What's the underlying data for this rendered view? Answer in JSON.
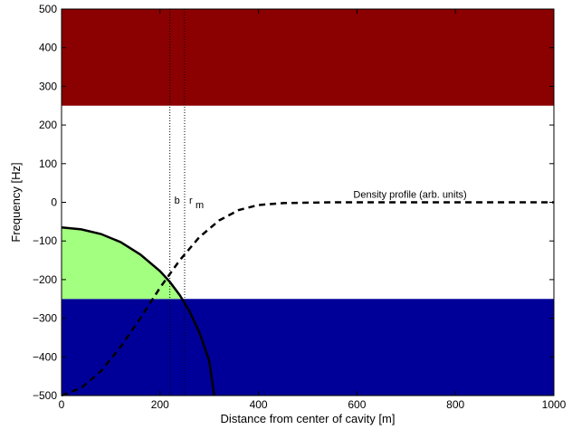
{
  "chart_data": {
    "type": "line",
    "xlabel": "Distance from center of cavity  [m]",
    "ylabel": "Frequency  [Hz]",
    "xlim": [
      0,
      1000
    ],
    "ylim": [
      -500,
      500
    ],
    "x_ticks": [
      0,
      200,
      400,
      600,
      800,
      1000
    ],
    "y_ticks": [
      -500,
      -400,
      -300,
      -200,
      -100,
      0,
      100,
      200,
      300,
      400,
      500
    ],
    "grid": false,
    "legend": "none",
    "bands": [
      {
        "x": [
          0,
          1000
        ],
        "y": [
          250,
          500
        ],
        "color": "#8b0000"
      },
      {
        "x": [
          0,
          1000
        ],
        "y": [
          -500,
          -250
        ],
        "color": "#000099"
      },
      {
        "x": [
          0,
          210
        ],
        "y": [
          -250,
          -65
        ],
        "color": "#a3ff80",
        "note": "area under solid curve"
      }
    ],
    "series": [
      {
        "style": "solid",
        "color": "#000000",
        "x": [
          0,
          40,
          80,
          120,
          160,
          200,
          220,
          240,
          260,
          280,
          300,
          310
        ],
        "y": [
          -65,
          -70,
          -82,
          -103,
          -135,
          -178,
          -206,
          -240,
          -282,
          -337,
          -410,
          -500
        ]
      },
      {
        "style": "dashed",
        "color": "#000000",
        "x": [
          0,
          40,
          80,
          120,
          160,
          200,
          240,
          280,
          320,
          360,
          400,
          450,
          500,
          550,
          600,
          700,
          800,
          900,
          1000
        ],
        "y": [
          -500,
          -480,
          -437,
          -374,
          -300,
          -221,
          -150,
          -90,
          -47,
          -20,
          -7,
          -2,
          -1,
          0,
          0,
          0,
          0,
          0,
          0
        ]
      }
    ],
    "vlines": [
      {
        "x": 220,
        "label": "b",
        "style": "dotted"
      },
      {
        "x": 250,
        "label": "r",
        "label_sub": "m",
        "style": "dotted"
      }
    ],
    "annotations": [
      {
        "text": "Density profile (arb. units)",
        "x": 600,
        "y": 12
      }
    ]
  }
}
